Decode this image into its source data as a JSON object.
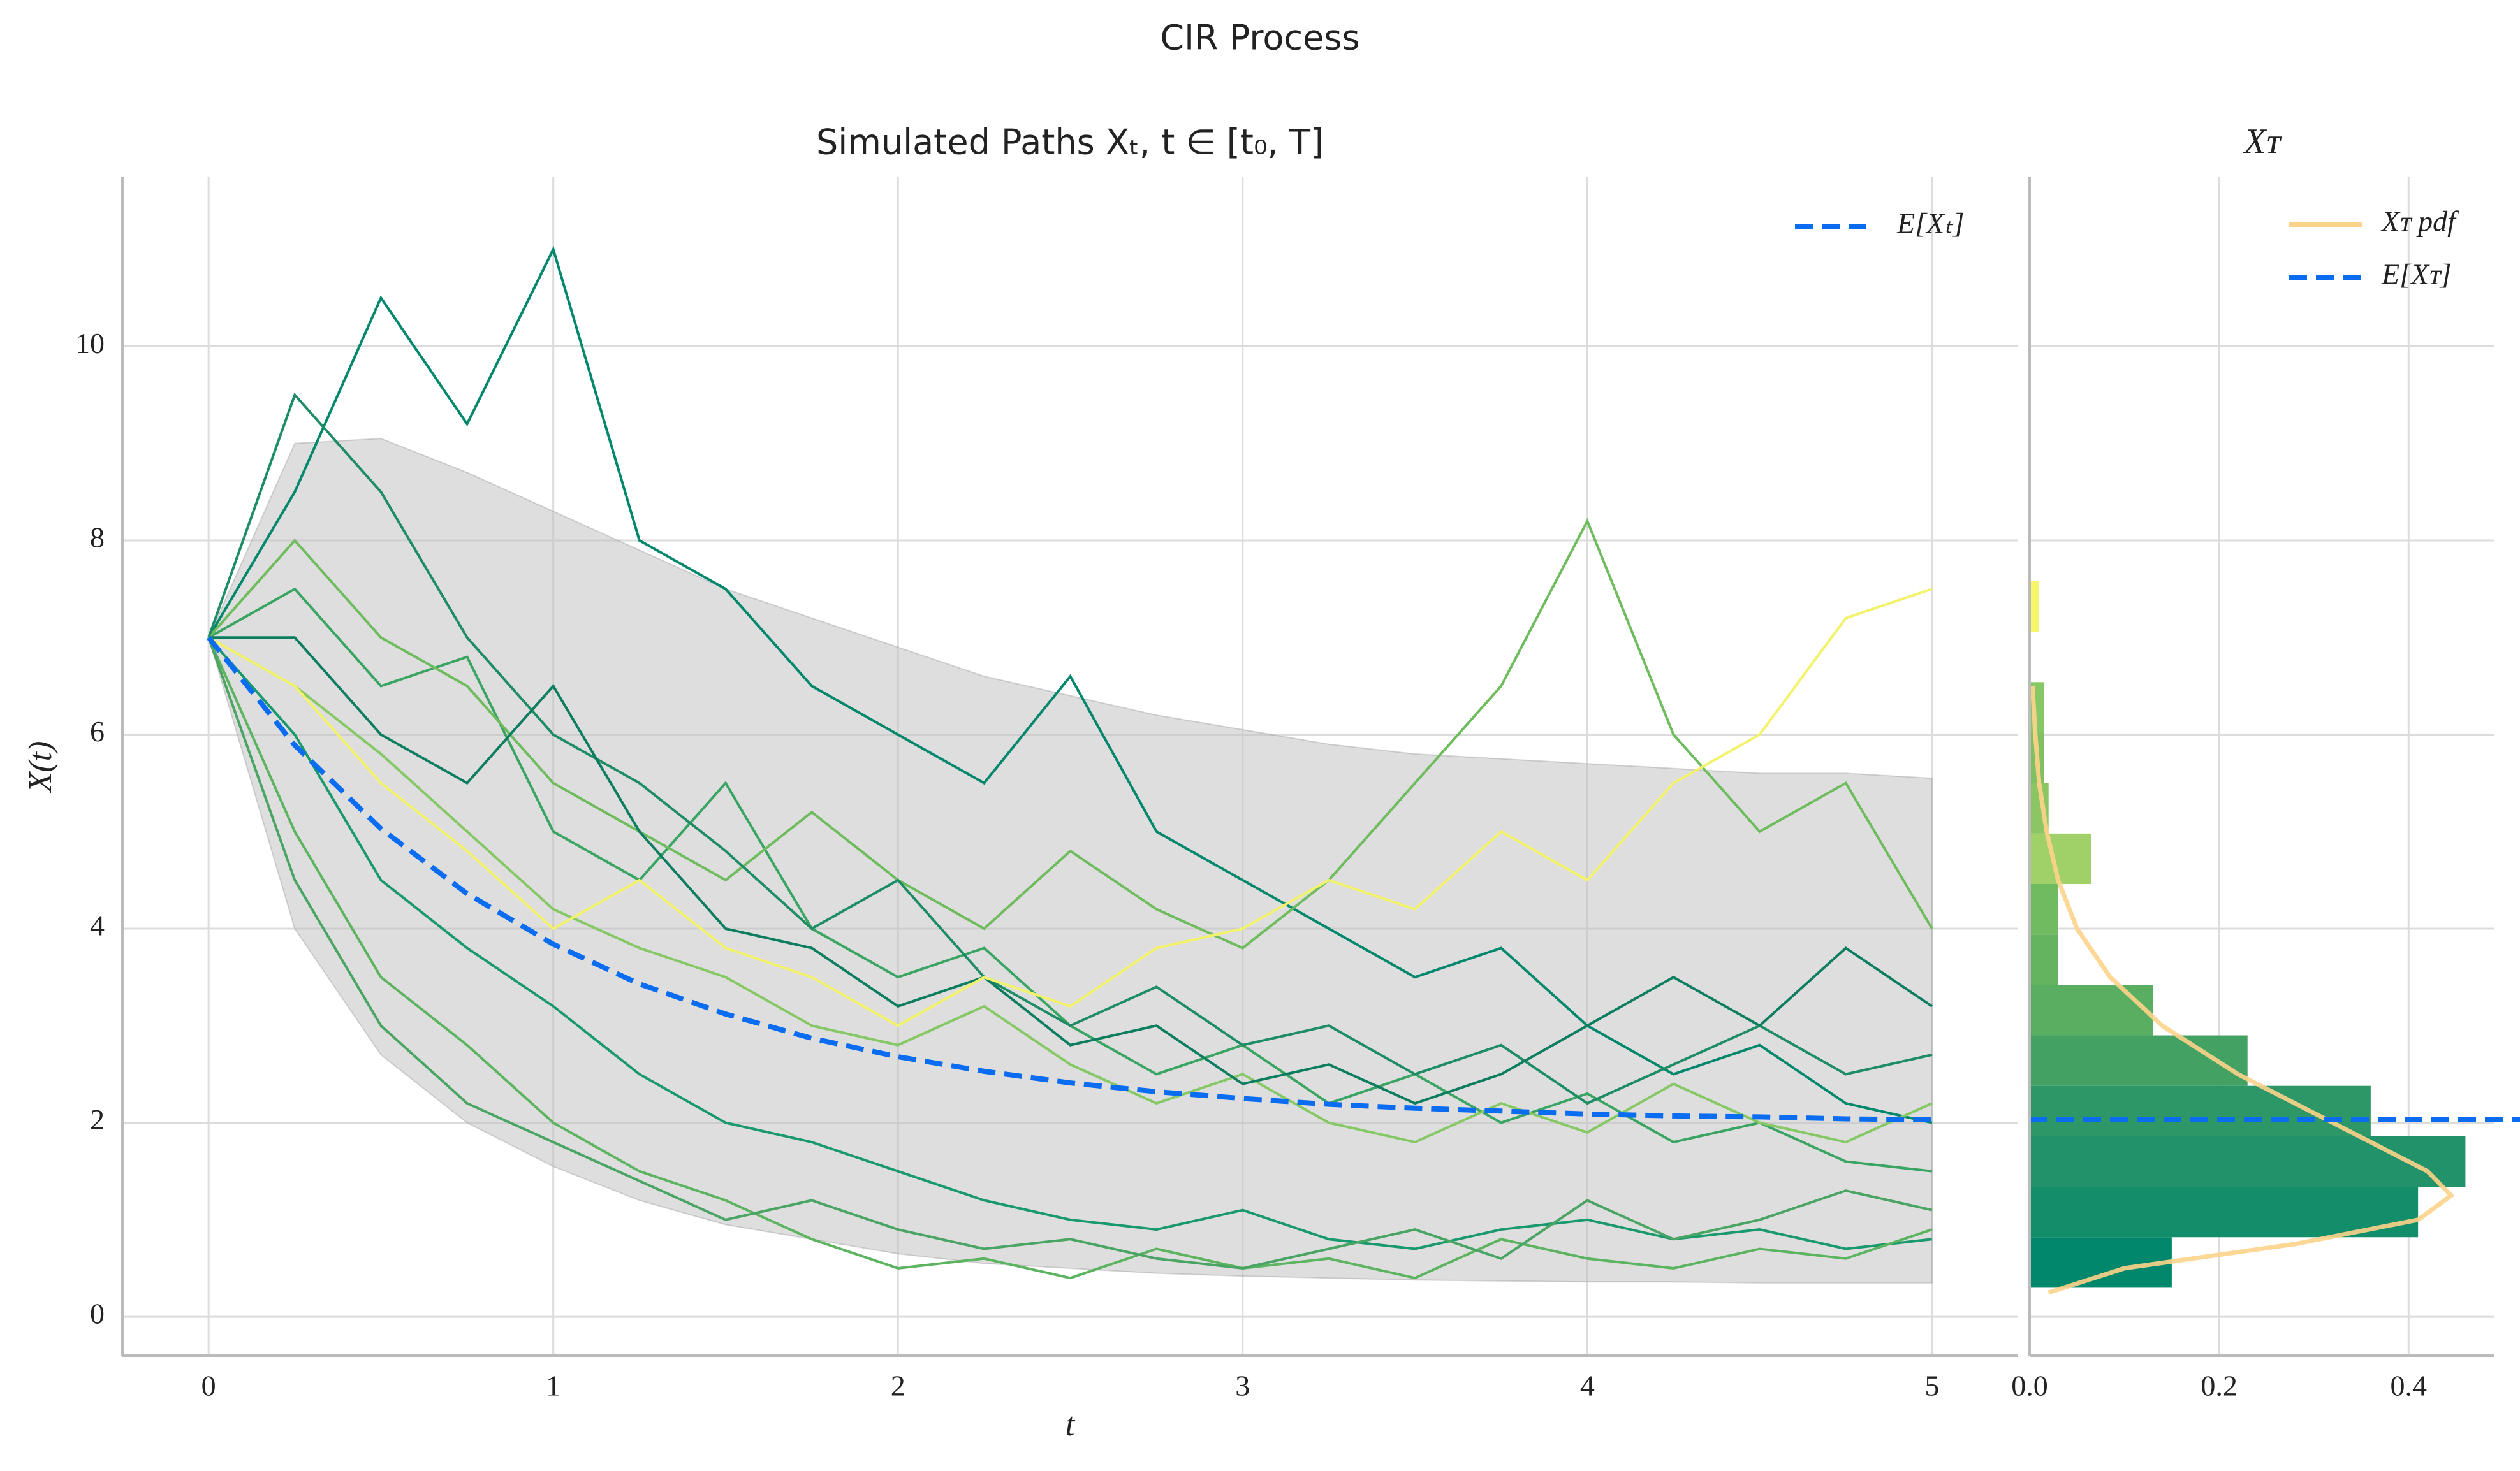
{
  "suptitle": "CIR Process",
  "chart_data": [
    {
      "type": "line",
      "title": "Simulated Paths Xₜ, t ∈ [t₀, T]",
      "xlabel": "t",
      "ylabel": "X(t)",
      "xlim": [
        -0.25,
        5.25
      ],
      "xticks": [
        0,
        1,
        2,
        3,
        4,
        5
      ],
      "ylim": [
        -0.4,
        11.75
      ],
      "yticks": [
        0,
        2,
        4,
        6,
        8,
        10
      ],
      "grid": true,
      "legend": "upper right",
      "x": [
        0,
        0.25,
        0.5,
        0.75,
        1,
        1.25,
        1.5,
        1.75,
        2,
        2.25,
        2.5,
        2.75,
        3,
        3.25,
        3.5,
        3.75,
        4,
        4.25,
        4.5,
        4.75,
        5
      ],
      "band": {
        "color": "#bdbdbd",
        "upper": [
          7,
          9.0,
          9.05,
          8.7,
          8.3,
          7.9,
          7.5,
          7.2,
          6.9,
          6.6,
          6.4,
          6.2,
          6.05,
          5.9,
          5.8,
          5.75,
          5.7,
          5.65,
          5.6,
          5.6,
          5.55
        ],
        "lower": [
          7,
          4.0,
          2.7,
          2.0,
          1.55,
          1.2,
          0.95,
          0.8,
          0.65,
          0.55,
          0.5,
          0.45,
          0.42,
          0.4,
          0.38,
          0.37,
          0.36,
          0.36,
          0.35,
          0.35,
          0.35
        ]
      },
      "paths": [
        {
          "color": "#00876c",
          "values": [
            7,
            8.5,
            10.5,
            9.2,
            11,
            8.0,
            7.5,
            6.5,
            6.0,
            5.5,
            6.6,
            5.0,
            4.5,
            4.0,
            3.5,
            3.8,
            3.0,
            2.5,
            2.8,
            2.2,
            2.0
          ]
        },
        {
          "color": "#1a9a6c",
          "values": [
            7,
            6.0,
            4.5,
            3.8,
            3.2,
            2.5,
            2.0,
            1.8,
            1.5,
            1.2,
            1.0,
            0.9,
            1.1,
            0.8,
            0.7,
            0.9,
            1.0,
            0.8,
            0.9,
            0.7,
            0.8
          ]
        },
        {
          "color": "#3aa563",
          "values": [
            7,
            7.5,
            6.5,
            6.8,
            5.0,
            4.5,
            5.5,
            4.0,
            3.5,
            3.8,
            3.0,
            2.5,
            2.8,
            2.2,
            2.5,
            2.0,
            2.3,
            1.8,
            2.0,
            1.6,
            1.5
          ]
        },
        {
          "color": "#5db460",
          "values": [
            7,
            5.0,
            3.5,
            2.8,
            2.0,
            1.5,
            1.2,
            0.8,
            0.5,
            0.6,
            0.4,
            0.7,
            0.5,
            0.6,
            0.4,
            0.8,
            0.6,
            0.5,
            0.7,
            0.6,
            0.9
          ]
        },
        {
          "color": "#6fbc5e",
          "values": [
            7,
            8.0,
            7.0,
            6.5,
            5.5,
            5.0,
            4.5,
            5.2,
            4.5,
            4.0,
            4.8,
            4.2,
            3.8,
            4.5,
            5.5,
            6.5,
            8.2,
            6.0,
            5.0,
            5.5,
            4.0
          ]
        },
        {
          "color": "#86c865",
          "values": [
            7,
            6.5,
            5.8,
            5.0,
            4.2,
            3.8,
            3.5,
            3.0,
            2.8,
            3.2,
            2.6,
            2.2,
            2.5,
            2.0,
            1.8,
            2.2,
            1.9,
            2.4,
            2.0,
            1.8,
            2.2
          ]
        },
        {
          "color": "#1e8c65",
          "values": [
            7,
            9.5,
            8.5,
            7.0,
            6.0,
            5.5,
            4.8,
            4.0,
            4.5,
            3.5,
            3.0,
            3.4,
            2.8,
            3.0,
            2.5,
            2.8,
            2.2,
            2.6,
            3.0,
            2.5,
            2.7
          ]
        },
        {
          "color": "#4aa564",
          "values": [
            7,
            4.5,
            3.0,
            2.2,
            1.8,
            1.4,
            1.0,
            1.2,
            0.9,
            0.7,
            0.8,
            0.6,
            0.5,
            0.7,
            0.9,
            0.6,
            1.2,
            0.8,
            1.0,
            1.3,
            1.1
          ]
        },
        {
          "color": "#0c7d5f",
          "values": [
            7,
            7.0,
            6.0,
            5.5,
            6.5,
            5.0,
            4.0,
            3.8,
            3.2,
            3.5,
            2.8,
            3.0,
            2.4,
            2.6,
            2.2,
            2.5,
            3.0,
            3.5,
            3.0,
            3.8,
            3.2
          ]
        },
        {
          "color": "#f2f26b",
          "values": [
            7,
            6.5,
            5.5,
            4.8,
            4.0,
            4.5,
            3.8,
            3.5,
            3.0,
            3.5,
            3.2,
            3.8,
            4.0,
            4.5,
            4.2,
            5.0,
            4.5,
            5.5,
            6.0,
            7.2,
            7.5
          ]
        }
      ],
      "series": [
        {
          "name": "E[Xₜ]",
          "color": "#0a6cf0",
          "values": [
            7,
            5.89,
            5.03,
            4.36,
            3.84,
            3.43,
            3.12,
            2.87,
            2.68,
            2.53,
            2.41,
            2.32,
            2.25,
            2.19,
            2.15,
            2.12,
            2.09,
            2.07,
            2.06,
            2.04,
            2.03
          ]
        }
      ]
    },
    {
      "type": "histogram",
      "title": "Xᴛ",
      "xlim": [
        0,
        0.49
      ],
      "xticks": [
        {
          "value": 0,
          "label": "0.0"
        },
        0.2,
        0.4
      ],
      "grid": true,
      "legend": "upper right",
      "bins": [
        0.3,
        0.82,
        1.34,
        1.86,
        2.38,
        2.9,
        3.42,
        3.94,
        4.46,
        4.98,
        5.5,
        6.02,
        6.54,
        7.06,
        7.58
      ],
      "counts": [
        0.15,
        0.41,
        0.46,
        0.36,
        0.23,
        0.13,
        0.03,
        0.03,
        0.065,
        0.02,
        0.015,
        0.015,
        0,
        0.01
      ],
      "colors": [
        "#00876c",
        "#138e6b",
        "#22926a",
        "#2e9768",
        "#43a163",
        "#5aae61",
        "#64b45f",
        "#70bb5f",
        "#a0d068",
        "#8cc563",
        "#7ec062",
        "#86c865",
        "#c8e46a",
        "#f7f56b"
      ],
      "pdf": {
        "name": "Xᴛ pdf",
        "color": "#fdd38a",
        "y": [
          0.25,
          0.5,
          0.75,
          1.0,
          1.25,
          1.5,
          1.75,
          2.0,
          2.5,
          3.0,
          3.5,
          4.0,
          4.5,
          5.0,
          5.5,
          6.0,
          6.5
        ],
        "values": [
          0.02,
          0.1,
          0.28,
          0.41,
          0.445,
          0.42,
          0.37,
          0.32,
          0.22,
          0.14,
          0.085,
          0.05,
          0.03,
          0.018,
          0.01,
          0.006,
          0.003
        ]
      },
      "mean": {
        "name": "E[Xᴛ]",
        "color": "#0a6cf0",
        "value": 2.03
      }
    }
  ]
}
